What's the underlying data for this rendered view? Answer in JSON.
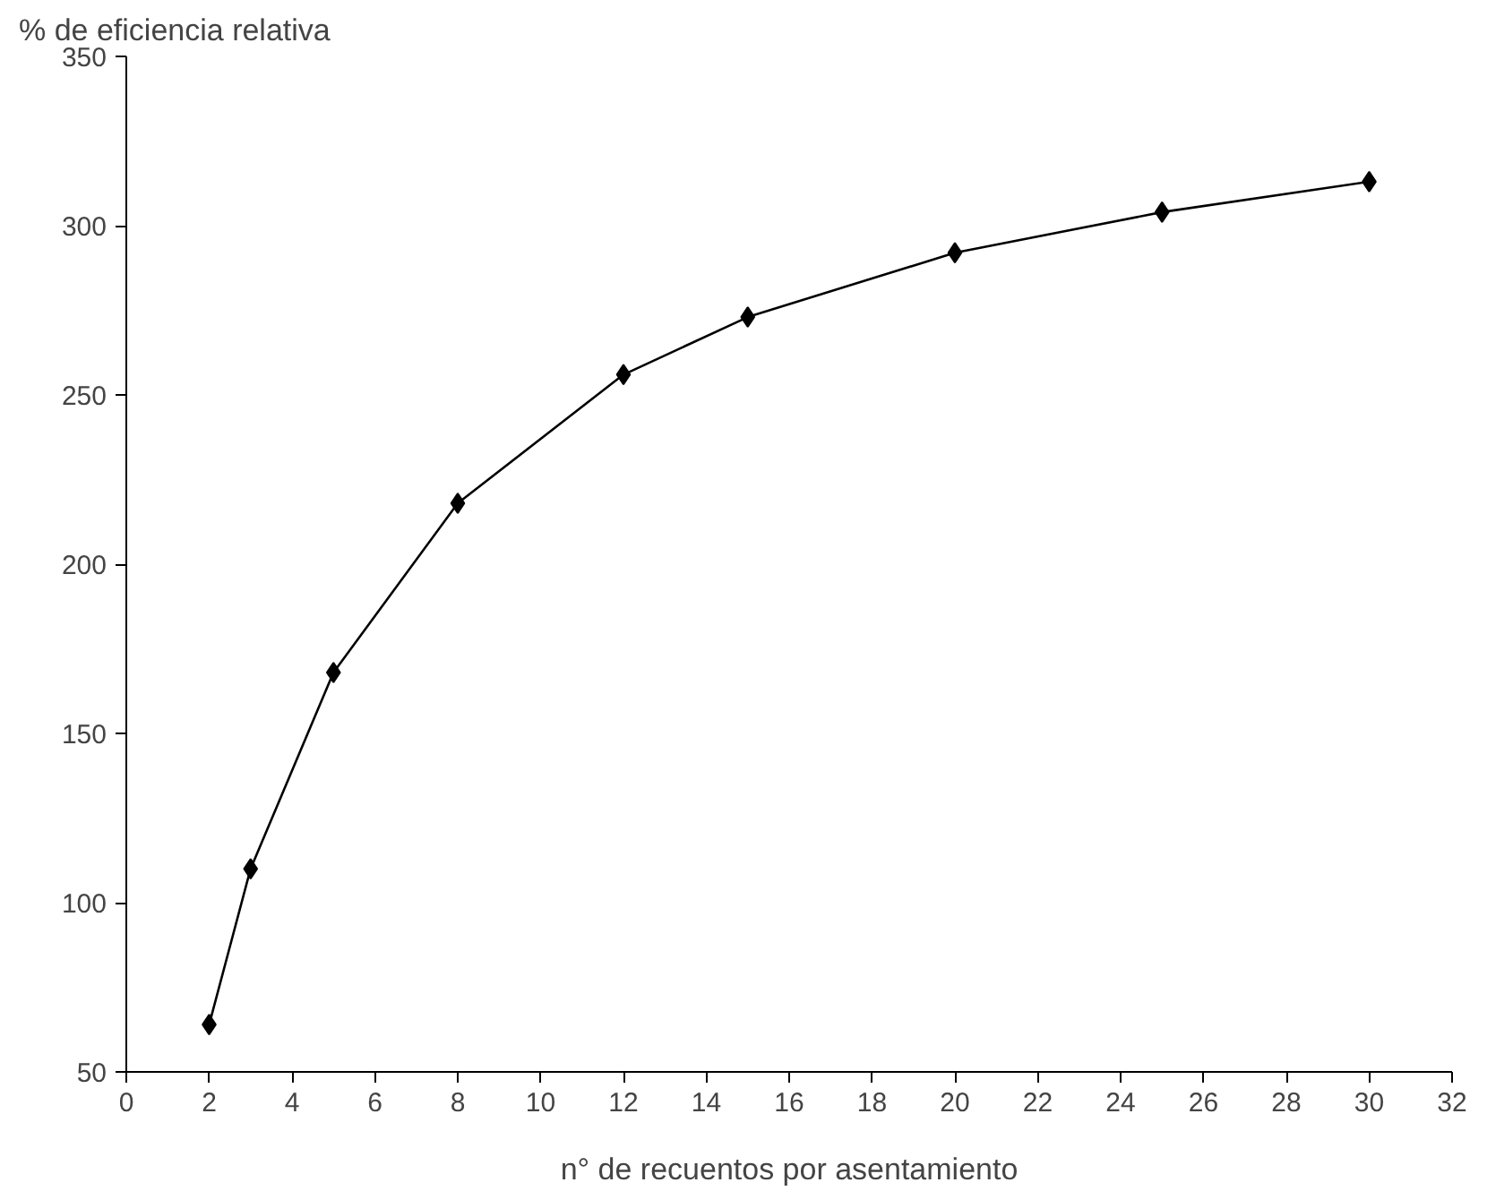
{
  "chart_data": {
    "type": "line",
    "ylabel": "% de eficiencia relativa",
    "xlabel": "n° de recuentos por asentamiento",
    "x": [
      2,
      3,
      5,
      8,
      12,
      15,
      20,
      25,
      30
    ],
    "series": [
      {
        "color": "#000000",
        "values": [
          64,
          110,
          168,
          218,
          256,
          273,
          292,
          304,
          313
        ]
      }
    ],
    "xlim": [
      0,
      32
    ],
    "xticks": [
      0,
      2,
      4,
      6,
      8,
      10,
      12,
      14,
      16,
      18,
      20,
      22,
      24,
      26,
      28,
      30,
      32
    ],
    "ylim": [
      50,
      350
    ],
    "yticks": [
      50,
      100,
      150,
      200,
      250,
      300,
      350
    ],
    "marker": "diamond",
    "line_style": "solid",
    "grid": false
  }
}
